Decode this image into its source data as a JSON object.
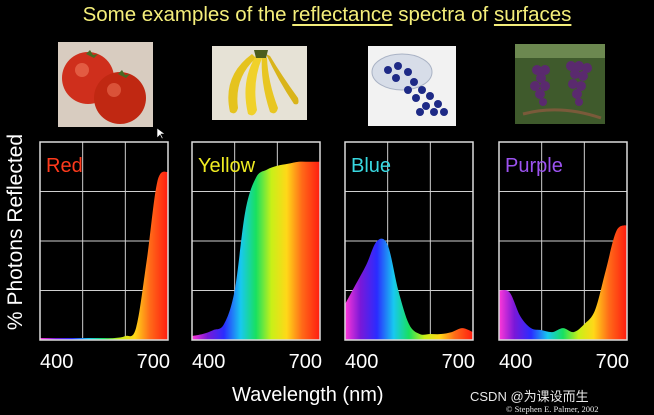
{
  "title": {
    "part1": "Some examples of the ",
    "word1": "reflectance",
    "part2": " spectra of ",
    "word2": "surfaces"
  },
  "credit": {
    "main": "CSDN @为课设而生",
    "sub": "© Stephen E. Palmer, 2002"
  },
  "photos": [
    {
      "name": "tomato-photo",
      "bg": "#d8ccc0"
    },
    {
      "name": "banana-photo",
      "bg": "#e6e2d6"
    },
    {
      "name": "blueberry-photo",
      "bg": "#f2f2f2"
    },
    {
      "name": "grape-photo",
      "bg": "#3f5a2c"
    }
  ],
  "chart_data": {
    "type": "area",
    "title": "Some examples of the reflectance spectra of surfaces",
    "xlabel": "Wavelength (nm)",
    "ylabel": "% Photons Reflected",
    "xlim": [
      400,
      700
    ],
    "ylim": [
      0,
      100
    ],
    "x_ticks": [
      "400",
      "700"
    ],
    "grid": true,
    "x": [
      400,
      425,
      450,
      475,
      500,
      525,
      550,
      575,
      600,
      625,
      650,
      675,
      700
    ],
    "series": [
      {
        "name": "Red",
        "color": "#ff3a1c",
        "values": [
          1,
          1,
          1,
          1,
          1,
          1,
          1,
          1,
          2,
          6,
          40,
          80,
          85
        ]
      },
      {
        "name": "Yellow",
        "color": "#f0ec22",
        "values": [
          2,
          3,
          5,
          8,
          25,
          65,
          82,
          86,
          88,
          89,
          90,
          90,
          90
        ]
      },
      {
        "name": "Blue",
        "color": "#38d8e0",
        "values": [
          18,
          28,
          38,
          50,
          48,
          25,
          8,
          3,
          3,
          3,
          4,
          6,
          4
        ]
      },
      {
        "name": "Purple",
        "color": "#9c52f0",
        "values": [
          25,
          24,
          12,
          6,
          5,
          4,
          6,
          4,
          8,
          15,
          35,
          55,
          58
        ]
      }
    ]
  }
}
